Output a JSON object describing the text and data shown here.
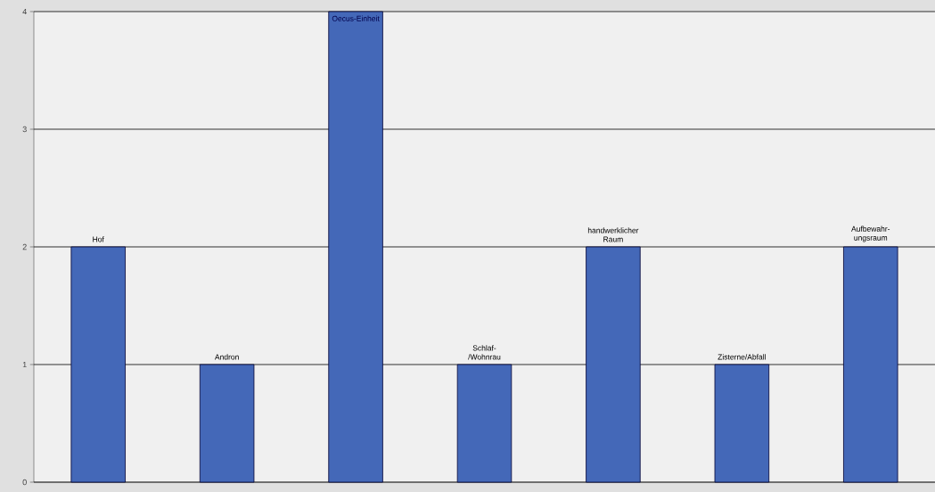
{
  "chart_data": {
    "type": "bar",
    "categories": [
      "Hof",
      "Andron",
      "Oecus-Einheit",
      "Schlaf-/Wohnrau",
      "handwerklicher Raum",
      "Zisterne/Abfall",
      "Aufbewahr-ungsraum"
    ],
    "values": [
      2,
      1,
      4,
      1,
      2,
      1,
      2
    ],
    "color": "#4468b8",
    "ylim": [
      0,
      4
    ],
    "yticks": [
      0,
      1,
      2,
      3,
      4
    ],
    "grid": "y"
  }
}
